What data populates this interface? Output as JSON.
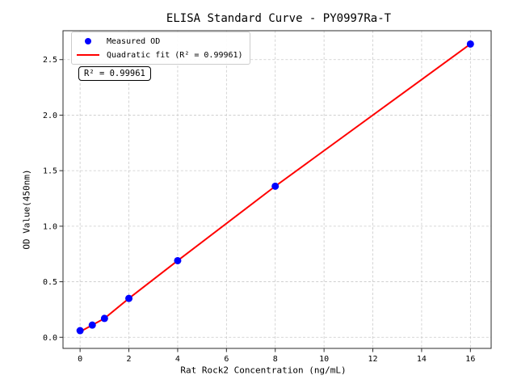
{
  "chart_data": {
    "type": "scatter",
    "title": "ELISA Standard Curve - PY0997Ra-T",
    "xlabel": "Rat Rock2 Concentration (ng/mL)",
    "ylabel": "OD Value(450nm)",
    "xlim": [
      -0.7,
      16.85
    ],
    "ylim": [
      -0.1,
      2.76
    ],
    "xticks": [
      0,
      2,
      4,
      6,
      8,
      10,
      12,
      14,
      16
    ],
    "xtick_labels": [
      "0",
      "2",
      "4",
      "6",
      "8",
      "10",
      "12",
      "14",
      "16"
    ],
    "yticks": [
      0,
      0.5,
      1,
      1.5,
      2,
      2.5
    ],
    "ytick_labels": [
      "0.0",
      "0.5",
      "1.0",
      "1.5",
      "2.0",
      "2.5"
    ],
    "grid": true,
    "grid_style": "dashed",
    "grid_color": "#c9c9c9",
    "spine_color": "#2b2b2b",
    "legend_position": "upper left",
    "series": [
      {
        "name": "Measured OD",
        "type": "scatter",
        "color": "#0000ff",
        "x": [
          0,
          0.5,
          1,
          2,
          4,
          8,
          16
        ],
        "y": [
          0.06,
          0.11,
          0.17,
          0.35,
          0.69,
          1.36,
          2.64
        ]
      },
      {
        "name": "Quadratic fit (R² = 0.99961)",
        "type": "line",
        "color": "#ff0000",
        "x": [
          0,
          0.5,
          1,
          2,
          4,
          8,
          16
        ],
        "y": [
          0.05,
          0.11,
          0.17,
          0.35,
          0.69,
          1.36,
          2.64
        ]
      }
    ],
    "r_squared": "0.99961",
    "annotation": {
      "text": "R² = 0.99961"
    }
  }
}
